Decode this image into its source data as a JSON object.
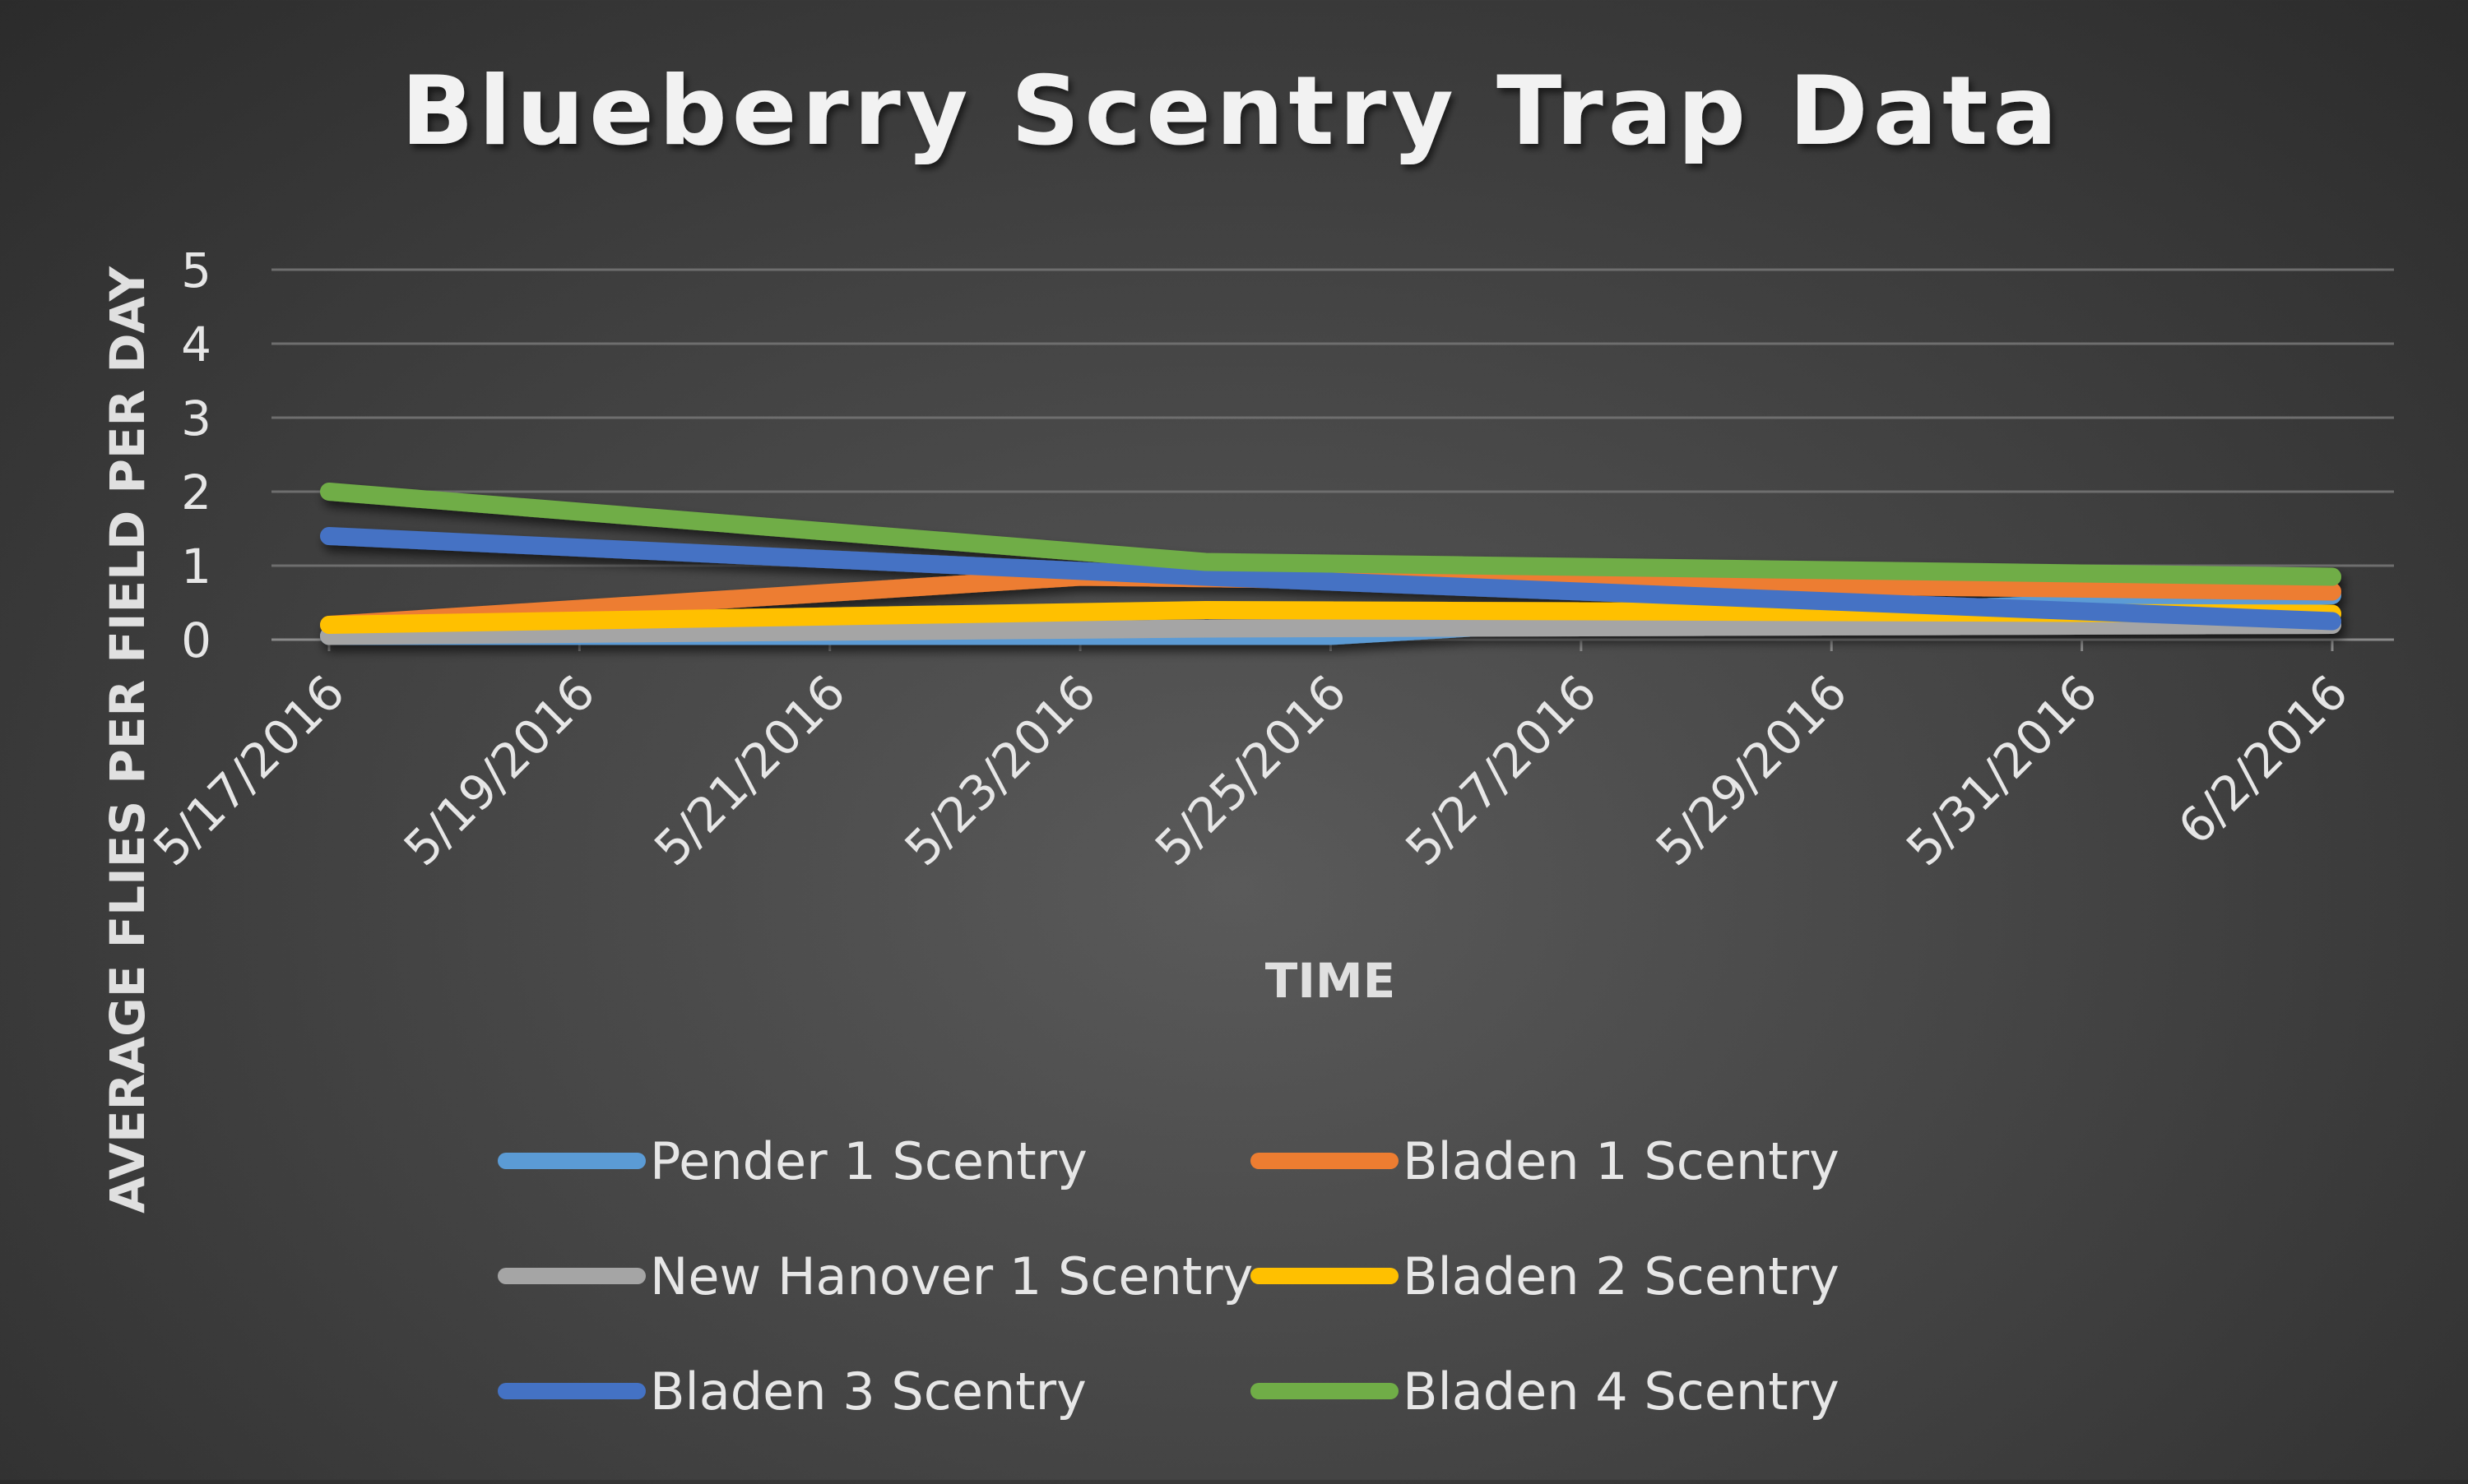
{
  "chart_data": {
    "type": "line",
    "title": "Blueberry Scentry Trap Data",
    "xlabel": "TIME",
    "ylabel": "AVERAGE FLIES PER FIELD PER DAY",
    "ylim": [
      0,
      5
    ],
    "yticks": [
      "0",
      "1",
      "2",
      "3",
      "4",
      "5"
    ],
    "x_tick_labels": [
      "5/17/2016",
      "5/19/2016",
      "5/21/2016",
      "5/23/2016",
      "5/25/2016",
      "5/27/2016",
      "5/29/2016",
      "5/31/2016",
      "6/2/2016"
    ],
    "x_range": [
      "5/17/2016",
      "6/2/2016"
    ],
    "grid": true,
    "legend_position": "bottom",
    "series": [
      {
        "name": "Pender 1 Scentry",
        "color": "#5b9bd5",
        "x": [
          "5/17/2016",
          "5/25/2016",
          "5/27/2016",
          "6/2/2016"
        ],
        "y": [
          0.05,
          0.05,
          0.25,
          0.6
        ]
      },
      {
        "name": "Bladen 1 Scentry",
        "color": "#ed7d31",
        "x": [
          "5/17/2016",
          "5/23/2016",
          "6/2/2016"
        ],
        "y": [
          0.2,
          0.85,
          0.65
        ]
      },
      {
        "name": "New Hanover 1 Scentry",
        "color": "#a5a5a5",
        "x": [
          "5/17/2016",
          "5/24/2016",
          "6/2/2016"
        ],
        "y": [
          0.05,
          0.15,
          0.2
        ]
      },
      {
        "name": "Bladen 2 Scentry",
        "color": "#ffc000",
        "x": [
          "5/17/2016",
          "5/24/2016",
          "6/2/2016"
        ],
        "y": [
          0.2,
          0.4,
          0.35
        ]
      },
      {
        "name": "Bladen 3 Scentry",
        "color": "#4472c4",
        "x": [
          "5/17/2016",
          "5/24/2016",
          "6/2/2016"
        ],
        "y": [
          1.4,
          0.85,
          0.25
        ]
      },
      {
        "name": "Bladen 4 Scentry",
        "color": "#70ad47",
        "x": [
          "5/17/2016",
          "5/24/2016",
          "6/2/2016"
        ],
        "y": [
          2.0,
          1.05,
          0.85
        ]
      }
    ]
  }
}
